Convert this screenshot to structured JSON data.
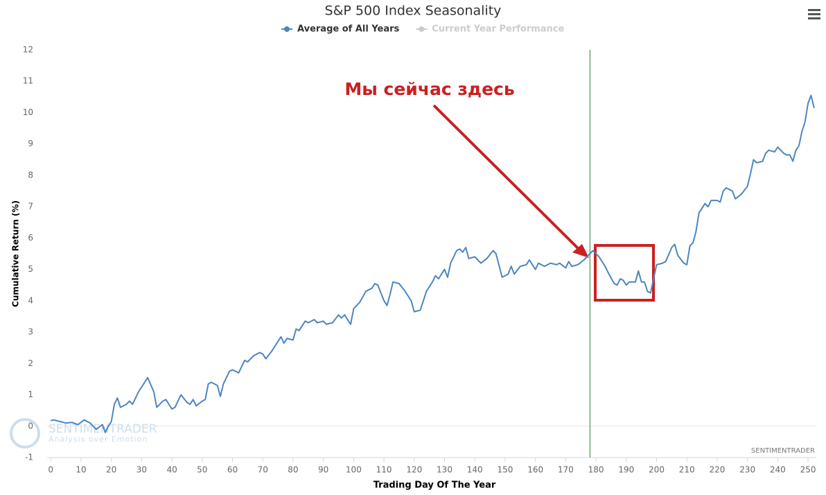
{
  "chart_data": {
    "type": "line",
    "title": "S&P 500 Index Seasonality",
    "x_label": "Trading Day Of The Year",
    "y_label": "Cumulative Return (%)",
    "annotation": "Мы сейчас здесь",
    "watermark": "SENTIMENTRADER",
    "watermark_tagline": "Analysis over Emotion",
    "credit": "SENTIMENTRADER",
    "marker_line_x": 178,
    "marker_line_color": "#2e7d32",
    "x": [
      0,
      1,
      3,
      5,
      7,
      9,
      11,
      13,
      15,
      17,
      18,
      19,
      20,
      21,
      22,
      23,
      25,
      26,
      27,
      29,
      31,
      32,
      34,
      35,
      37,
      38,
      40,
      41,
      43,
      45,
      46,
      47,
      48,
      50,
      51,
      52,
      53,
      55,
      56,
      57,
      59,
      60,
      62,
      64,
      65,
      67,
      69,
      70,
      71,
      73,
      75,
      76,
      77,
      78,
      80,
      81,
      82,
      84,
      85,
      87,
      88,
      90,
      91,
      93,
      95,
      96,
      97,
      99,
      100,
      102,
      104,
      106,
      107,
      108,
      110,
      111,
      112,
      113,
      115,
      117,
      119,
      120,
      122,
      124,
      126,
      127,
      128,
      130,
      131,
      132,
      134,
      135,
      136,
      137,
      138,
      140,
      142,
      144,
      146,
      147,
      149,
      151,
      152,
      153,
      155,
      157,
      158,
      160,
      161,
      163,
      165,
      167,
      168,
      170,
      171,
      172,
      174,
      176,
      179,
      181,
      183,
      184,
      186,
      187,
      188,
      189,
      190,
      191,
      193,
      194,
      195,
      196,
      197,
      198,
      200,
      202,
      203,
      205,
      206,
      207,
      209,
      210,
      211,
      212,
      213,
      214,
      216,
      217,
      218,
      220,
      221,
      222,
      223,
      225,
      226,
      228,
      230,
      231,
      232,
      233,
      235,
      236,
      237,
      239,
      240,
      242,
      243,
      244,
      245,
      246,
      247,
      248,
      249,
      250,
      251,
      252
    ],
    "series": [
      {
        "name": "Average of All Years",
        "color": "#4a86c0",
        "values": [
          0.18,
          0.2,
          0.15,
          0.1,
          0.12,
          0.05,
          0.2,
          0.1,
          -0.1,
          0.05,
          -0.2,
          0,
          0.15,
          0.7,
          0.9,
          0.6,
          0.7,
          0.8,
          0.7,
          1.1,
          1.4,
          1.55,
          1.1,
          0.6,
          0.8,
          0.85,
          0.55,
          0.6,
          1,
          0.75,
          0.7,
          0.85,
          0.65,
          0.8,
          0.85,
          1.35,
          1.4,
          1.3,
          0.95,
          1.35,
          1.75,
          1.8,
          1.7,
          2.1,
          2.05,
          2.25,
          2.35,
          2.3,
          2.15,
          2.4,
          2.7,
          2.85,
          2.65,
          2.8,
          2.75,
          3.1,
          3.05,
          3.35,
          3.3,
          3.4,
          3.3,
          3.35,
          3.25,
          3.3,
          3.55,
          3.45,
          3.55,
          3.25,
          3.75,
          3.95,
          4.3,
          4.4,
          4.55,
          4.5,
          4,
          3.85,
          4.2,
          4.6,
          4.55,
          4.3,
          4,
          3.65,
          3.7,
          4.3,
          4.6,
          4.8,
          4.7,
          5,
          4.75,
          5.2,
          5.6,
          5.65,
          5.55,
          5.7,
          5.35,
          5.4,
          5.2,
          5.35,
          5.6,
          5.5,
          4.75,
          4.85,
          5.1,
          4.85,
          5.1,
          5.15,
          5.3,
          5,
          5.2,
          5.1,
          5.2,
          5.15,
          5.2,
          5.05,
          5.25,
          5.1,
          5.15,
          5.3,
          5.6,
          5.4,
          5.1,
          4.9,
          4.55,
          4.5,
          4.7,
          4.65,
          4.5,
          4.6,
          4.6,
          4.95,
          4.6,
          4.6,
          4.3,
          4.25,
          5.15,
          5.2,
          5.25,
          5.7,
          5.8,
          5.45,
          5.2,
          5.15,
          5.75,
          5.85,
          6.2,
          6.8,
          7.1,
          7,
          7.2,
          7.2,
          7.15,
          7.5,
          7.6,
          7.5,
          7.25,
          7.4,
          7.65,
          8.05,
          8.5,
          8.4,
          8.45,
          8.7,
          8.8,
          8.75,
          8.9,
          8.7,
          8.65,
          8.65,
          8.45,
          8.8,
          8.95,
          9.4,
          9.7,
          10.3,
          10.55,
          10.15
        ]
      }
    ],
    "hidden_series": [
      {
        "name": "Current Year Performance",
        "color": "#cccccc"
      }
    ],
    "xlim": [
      -1.2,
      252.5
    ],
    "ylim": [
      -1,
      12
    ],
    "xticks": [
      0,
      10,
      20,
      30,
      40,
      50,
      60,
      70,
      80,
      90,
      100,
      110,
      120,
      130,
      140,
      150,
      160,
      170,
      180,
      190,
      200,
      210,
      220,
      230,
      240,
      250
    ],
    "yticks": [
      -1,
      0,
      1,
      2,
      3,
      4,
      5,
      6,
      7,
      8,
      9,
      10,
      11,
      12
    ]
  }
}
